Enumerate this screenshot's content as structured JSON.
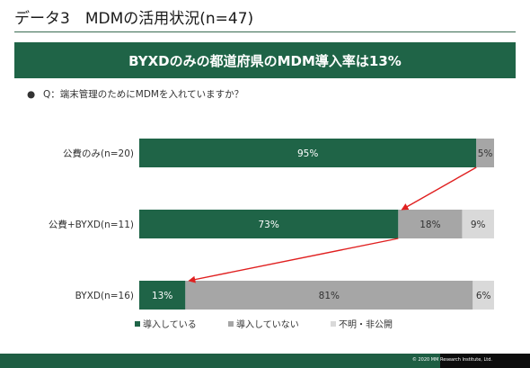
{
  "slide": {
    "title": "データ3　MDMの活用状況(n=47)",
    "banner": "BYXDのみの都道府県のMDM導入率は13%",
    "question_bullet": "●",
    "question": "Q：端末管理のためにMDMを入れていますか？",
    "copyright": "© 2020 MM Research Institute, Ltd."
  },
  "colors": {
    "accent": "#1f6447",
    "bar_installed": "#1f6447",
    "bar_not_installed": "#a6a6a6",
    "bar_unknown": "#d9d9d9",
    "arrow": "#e02020"
  },
  "chart_data": {
    "type": "bar",
    "orientation": "horizontal",
    "stacked": true,
    "percent": true,
    "title": "",
    "categories": [
      "公費のみ(n=20)",
      "公費+BYXD(n=11)",
      "BYXD(n=16)"
    ],
    "series": [
      {
        "name": "導入している",
        "values": [
          95,
          73,
          13
        ],
        "labels": [
          "95%",
          "73%",
          "13%"
        ],
        "color": "#1f6447"
      },
      {
        "name": "導入していない",
        "values": [
          5,
          18,
          81
        ],
        "labels": [
          "5%",
          "18%",
          "81%"
        ],
        "color": "#a6a6a6"
      },
      {
        "name": "不明・非公開",
        "values": [
          0,
          9,
          6
        ],
        "labels": [
          "",
          "9%",
          "6%"
        ],
        "color": "#d9d9d9"
      }
    ],
    "xlim": [
      0,
      100
    ],
    "grid": false,
    "legend_position": "bottom",
    "annotations": [
      {
        "type": "arrow",
        "from_category": 0,
        "to_category": 1,
        "meaning": "decrease in adoption"
      },
      {
        "type": "arrow",
        "from_category": 1,
        "to_category": 2,
        "meaning": "decrease in adoption"
      }
    ]
  }
}
